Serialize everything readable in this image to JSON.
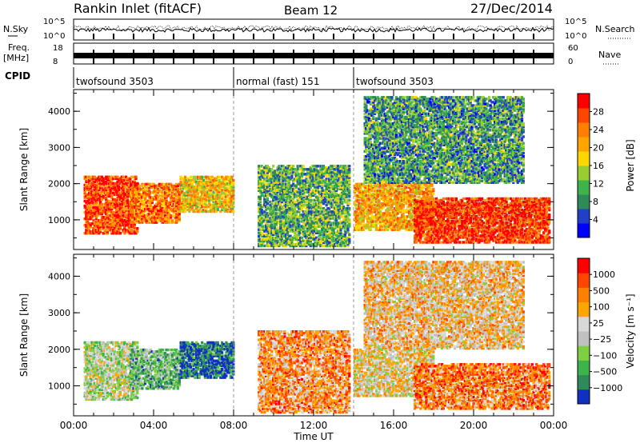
{
  "header": {
    "title": "Rankin Inlet (fitACF)",
    "beam": "Beam 12",
    "date": "27/Dec/2014"
  },
  "top_panels": {
    "nsky_label": "N.Sky",
    "nsky_ticks": [
      "10^5",
      "10^0"
    ],
    "nsearch_label": "N.Search",
    "nsearch_ticks": [
      "10^5",
      "10^0"
    ],
    "freq_label_1": "Freq.",
    "freq_label_2": "[MHz]",
    "freq_ticks": [
      "18",
      "8"
    ],
    "nave_label": "Nave",
    "nave_ticks": [
      "60",
      "0"
    ],
    "cpid_label": "CPID",
    "cpid_segments": [
      {
        "label": "twofsound 3503",
        "start": 0,
        "end": 8
      },
      {
        "label": "normal (fast) 151",
        "start": 8,
        "end": 14
      },
      {
        "label": "twofsound 3503",
        "start": 14,
        "end": 24
      }
    ]
  },
  "chart_data": [
    {
      "type": "heatmap",
      "name": "power",
      "ylabel": "Slant Range [km]",
      "ylim": [
        180,
        4600
      ],
      "xlim": [
        0,
        24
      ],
      "y_ticks": [
        1000,
        2000,
        3000,
        4000
      ],
      "y_tick_labels": [
        "1000",
        "2000",
        "3000",
        "4000"
      ],
      "colorbar_label": "Power [dB]",
      "colorbar_ticks": [
        "28",
        "24",
        "20",
        "16",
        "12",
        "8",
        "4"
      ],
      "colorbar_colors": [
        "#0000ff",
        "#2040c8",
        "#2e8b57",
        "#3cb44b",
        "#9acd32",
        "#ffd700",
        "#ffa500",
        "#ff7f00",
        "#ff4500",
        "#ff0000"
      ],
      "regions": [
        {
          "t0": 0.5,
          "t1": 3.2,
          "r0": 600,
          "r1": 2200,
          "level": 0.85
        },
        {
          "t0": 2.8,
          "t1": 5.3,
          "r0": 900,
          "r1": 2000,
          "level": 0.75
        },
        {
          "t0": 5.3,
          "t1": 8.0,
          "r0": 1200,
          "r1": 2200,
          "level": 0.6
        },
        {
          "t0": 9.2,
          "t1": 13.8,
          "r0": 250,
          "r1": 2500,
          "level": 0.35
        },
        {
          "t0": 14.0,
          "t1": 18.0,
          "r0": 700,
          "r1": 2000,
          "level": 0.65
        },
        {
          "t0": 17.0,
          "t1": 23.8,
          "r0": 350,
          "r1": 1600,
          "level": 0.9
        },
        {
          "t0": 14.5,
          "t1": 22.5,
          "r0": 2000,
          "r1": 4400,
          "level": 0.3
        }
      ]
    },
    {
      "type": "heatmap",
      "name": "velocity",
      "xlabel": "Time UT",
      "ylabel": "Slant Range [km]",
      "ylim": [
        180,
        4600
      ],
      "xlim": [
        0,
        24
      ],
      "y_ticks": [
        1000,
        2000,
        3000,
        4000
      ],
      "y_tick_labels": [
        "1000",
        "2000",
        "3000",
        "4000"
      ],
      "x_ticks": [
        0,
        4,
        8,
        12,
        16,
        20,
        24
      ],
      "x_tick_labels": [
        "00:00",
        "04:00",
        "08:00",
        "12:00",
        "16:00",
        "20:00",
        "00:00"
      ],
      "colorbar_label": "Velocity [m s⁻¹]",
      "colorbar_ticks": [
        "1000",
        "500",
        "100",
        "25",
        "−25",
        "−100",
        "−500",
        "−1000"
      ],
      "colorbar_colors": [
        "#1030c0",
        "#2e8b57",
        "#3cb44b",
        "#7fd040",
        "#c0c0c0",
        "#d8d8d8",
        "#ffa500",
        "#ff7f00",
        "#ff4500",
        "#ff0000"
      ],
      "regions": [
        {
          "t0": 0.5,
          "t1": 3.2,
          "r0": 600,
          "r1": 2200,
          "level": 0.45
        },
        {
          "t0": 2.8,
          "t1": 5.3,
          "r0": 900,
          "r1": 2000,
          "level": 0.3
        },
        {
          "t0": 5.3,
          "t1": 8.0,
          "r0": 1200,
          "r1": 2200,
          "level": 0.1
        },
        {
          "t0": 9.2,
          "t1": 13.8,
          "r0": 250,
          "r1": 2500,
          "level": 0.7
        },
        {
          "t0": 14.0,
          "t1": 18.0,
          "r0": 700,
          "r1": 2000,
          "level": 0.55
        },
        {
          "t0": 17.0,
          "t1": 23.8,
          "r0": 350,
          "r1": 1600,
          "level": 0.75
        },
        {
          "t0": 14.5,
          "t1": 22.5,
          "r0": 2000,
          "r1": 4400,
          "level": 0.6
        }
      ]
    }
  ]
}
